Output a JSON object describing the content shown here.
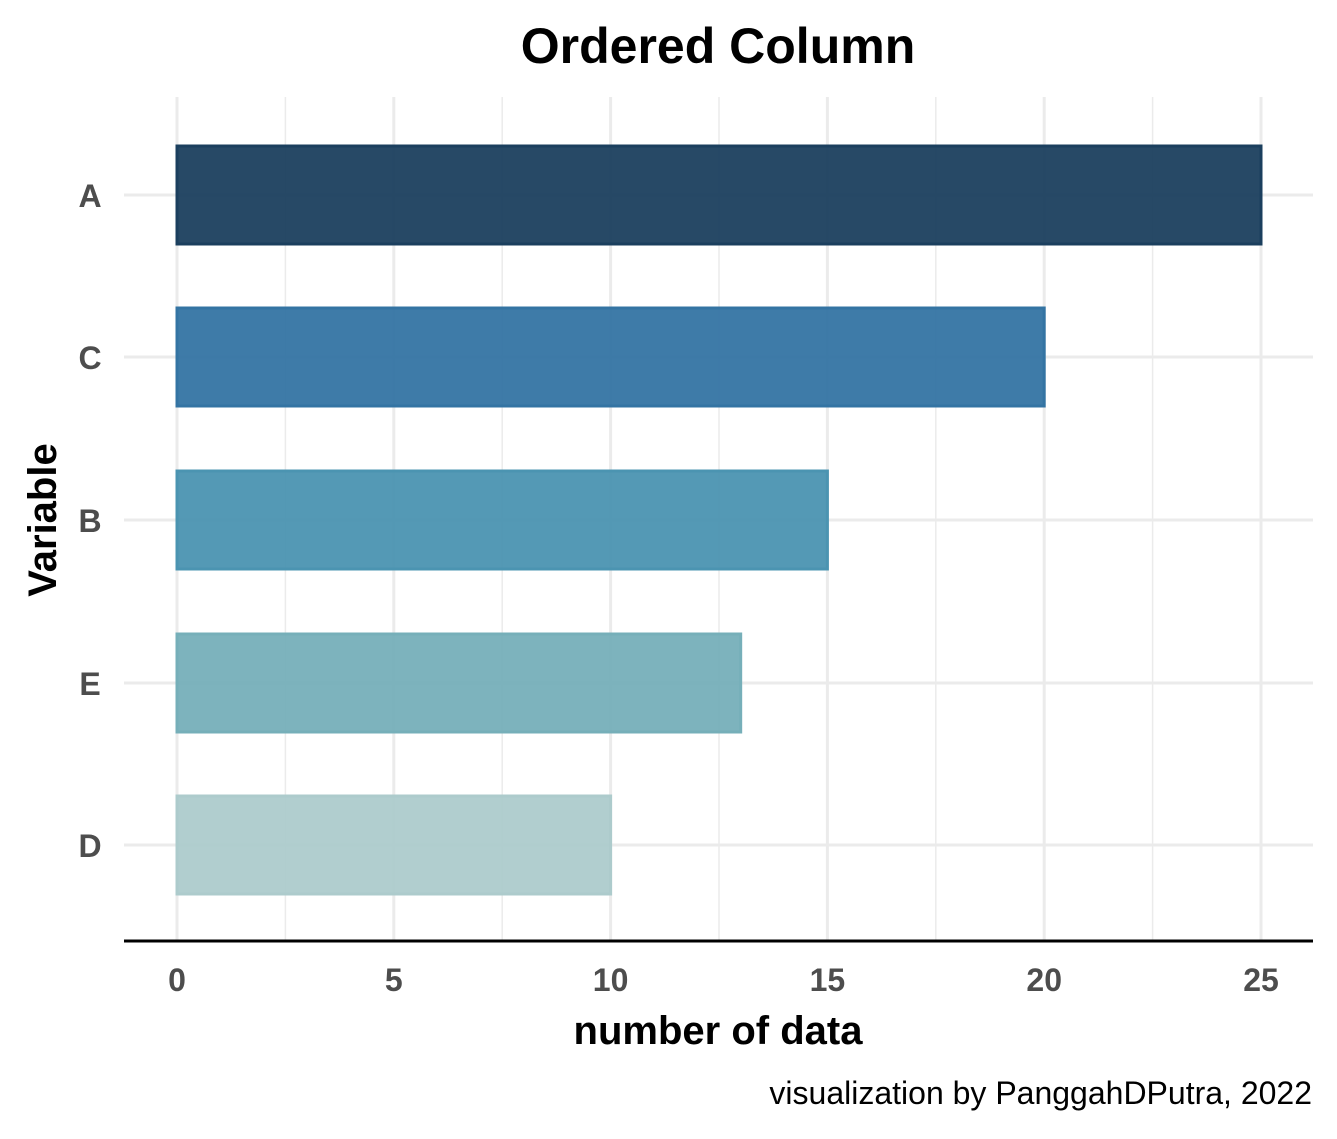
{
  "chart_data": {
    "type": "bar",
    "orientation": "horizontal",
    "title": "Ordered Column",
    "xlabel": "number of data",
    "ylabel": "Variable",
    "caption": "visualization by PanggahDPutra, 2022",
    "categories": [
      "A",
      "C",
      "B",
      "E",
      "D"
    ],
    "values": [
      25,
      20,
      15,
      13,
      10
    ],
    "colors": [
      "#1b3f5e",
      "#3474a3",
      "#4b94b1",
      "#76afb9",
      "#adcbcc"
    ],
    "xlim": [
      0,
      26.2
    ],
    "xticks": [
      0,
      5,
      10,
      15,
      20,
      25
    ],
    "xtick_labels": [
      "0",
      "5",
      "10",
      "15",
      "20",
      "25"
    ],
    "grid": true,
    "legend": "none"
  }
}
